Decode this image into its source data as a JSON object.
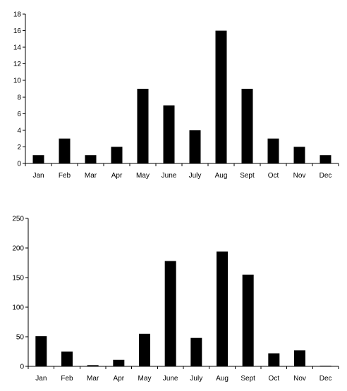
{
  "chart_data": [
    {
      "type": "bar",
      "title": "",
      "xlabel": "",
      "ylabel": "",
      "categories": [
        "Jan",
        "Feb",
        "Mar",
        "Apr",
        "May",
        "June",
        "July",
        "Aug",
        "Sept",
        "Oct",
        "Nov",
        "Dec"
      ],
      "values": [
        1,
        3,
        1,
        2,
        9,
        7,
        4,
        16,
        9,
        3,
        2,
        1
      ],
      "ylim": [
        0,
        18
      ],
      "yticks": [
        0,
        2,
        4,
        6,
        8,
        10,
        12,
        14,
        16,
        18
      ],
      "grid": false,
      "legend": "none"
    },
    {
      "type": "bar",
      "title": "",
      "xlabel": "",
      "ylabel": "",
      "categories": [
        "Jan",
        "Feb",
        "Mar",
        "Apr",
        "May",
        "June",
        "July",
        "Aug",
        "Sept",
        "Oct",
        "Nov",
        "Dec"
      ],
      "values": [
        51,
        25,
        2,
        11,
        55,
        178,
        48,
        194,
        155,
        22,
        27,
        1
      ],
      "ylim": [
        0,
        250
      ],
      "yticks": [
        0,
        50,
        100,
        150,
        200,
        250
      ],
      "grid": false,
      "legend": "none"
    }
  ]
}
